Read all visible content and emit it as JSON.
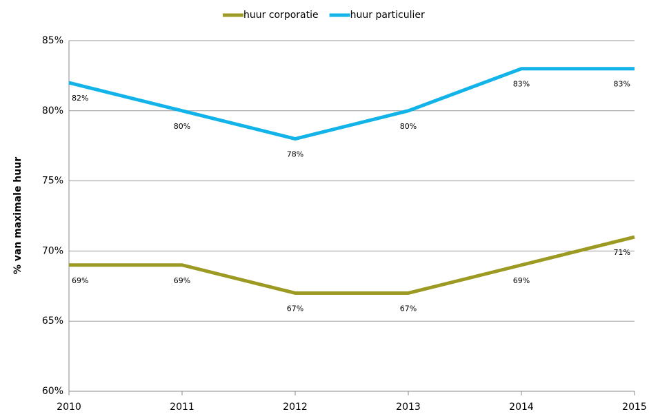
{
  "chart_data": {
    "type": "line",
    "ylabel": "% van maximale huur",
    "x": [
      2010,
      2011,
      2012,
      2013,
      2014,
      2015
    ],
    "xlim": [
      2010,
      2015
    ],
    "xticks": [
      2010,
      2011,
      2012,
      2013,
      2014,
      2015
    ],
    "ylim": [
      60,
      85
    ],
    "yticks": [
      {
        "value": 60,
        "label": "60%"
      },
      {
        "value": 65,
        "label": "65%"
      },
      {
        "value": 70,
        "label": "70%"
      },
      {
        "value": 75,
        "label": "75%"
      },
      {
        "value": 80,
        "label": "80%"
      },
      {
        "value": 85,
        "label": "85%"
      }
    ],
    "grid": true,
    "legend": "top",
    "series": [
      {
        "name": "huur corporatie",
        "color": "#9c9a22",
        "values": [
          69,
          69,
          67,
          67,
          69,
          71
        ],
        "value_labels": [
          "69%",
          "69%",
          "67%",
          "67%",
          "69%",
          "71%"
        ]
      },
      {
        "name": "huur particulier",
        "color": "#12b3e8",
        "values": [
          82,
          80,
          78,
          80,
          83,
          83
        ],
        "value_labels": [
          "82%",
          "80%",
          "78%",
          "80%",
          "83%",
          "83%"
        ]
      }
    ]
  }
}
